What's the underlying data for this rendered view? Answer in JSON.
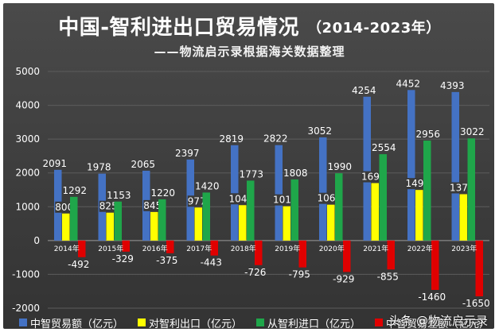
{
  "title_main": "中国-智利进出口贸易情况",
  "title_years": "（2014-2023年）",
  "subtitle": "——物流启示录根据海关数据整理",
  "watermark": "头条 @物流启示录",
  "colors": {
    "trade_total": "#4472c4",
    "exports": "#ffff00",
    "imports": "#1fa64a",
    "balance": "#e00000"
  },
  "chart_data": {
    "type": "bar",
    "categories": [
      "2014年",
      "2015年",
      "2016年",
      "2017年",
      "2018年",
      "2019年",
      "2020年",
      "2021年",
      "2022年",
      "2023年"
    ],
    "series": [
      {
        "name": "中智贸易额（亿元）",
        "values": [
          2091,
          1978,
          2065,
          2397,
          2819,
          2822,
          3052,
          4254,
          4452,
          4393
        ]
      },
      {
        "name": "对智利出口（亿元）",
        "values": [
          800,
          825,
          845,
          977,
          1047,
          1014,
          1061,
          1699,
          1496,
          1371
        ]
      },
      {
        "name": "从智利进口（亿元）",
        "values": [
          1292,
          1153,
          1220,
          1420,
          1773,
          1808,
          1990,
          2554,
          2956,
          3022
        ]
      },
      {
        "name": "中智贸易差额（亿元）",
        "values": [
          -492,
          -329,
          -375,
          -443,
          -726,
          -795,
          -929,
          -855,
          -1460,
          -1650
        ]
      }
    ],
    "ylim": [
      -2000,
      5000
    ],
    "yticks": [
      "-2000",
      "-1000",
      "0",
      "1000",
      "2000",
      "3000",
      "4000",
      "5000"
    ],
    "legend_position": "bottom",
    "grid": true
  }
}
